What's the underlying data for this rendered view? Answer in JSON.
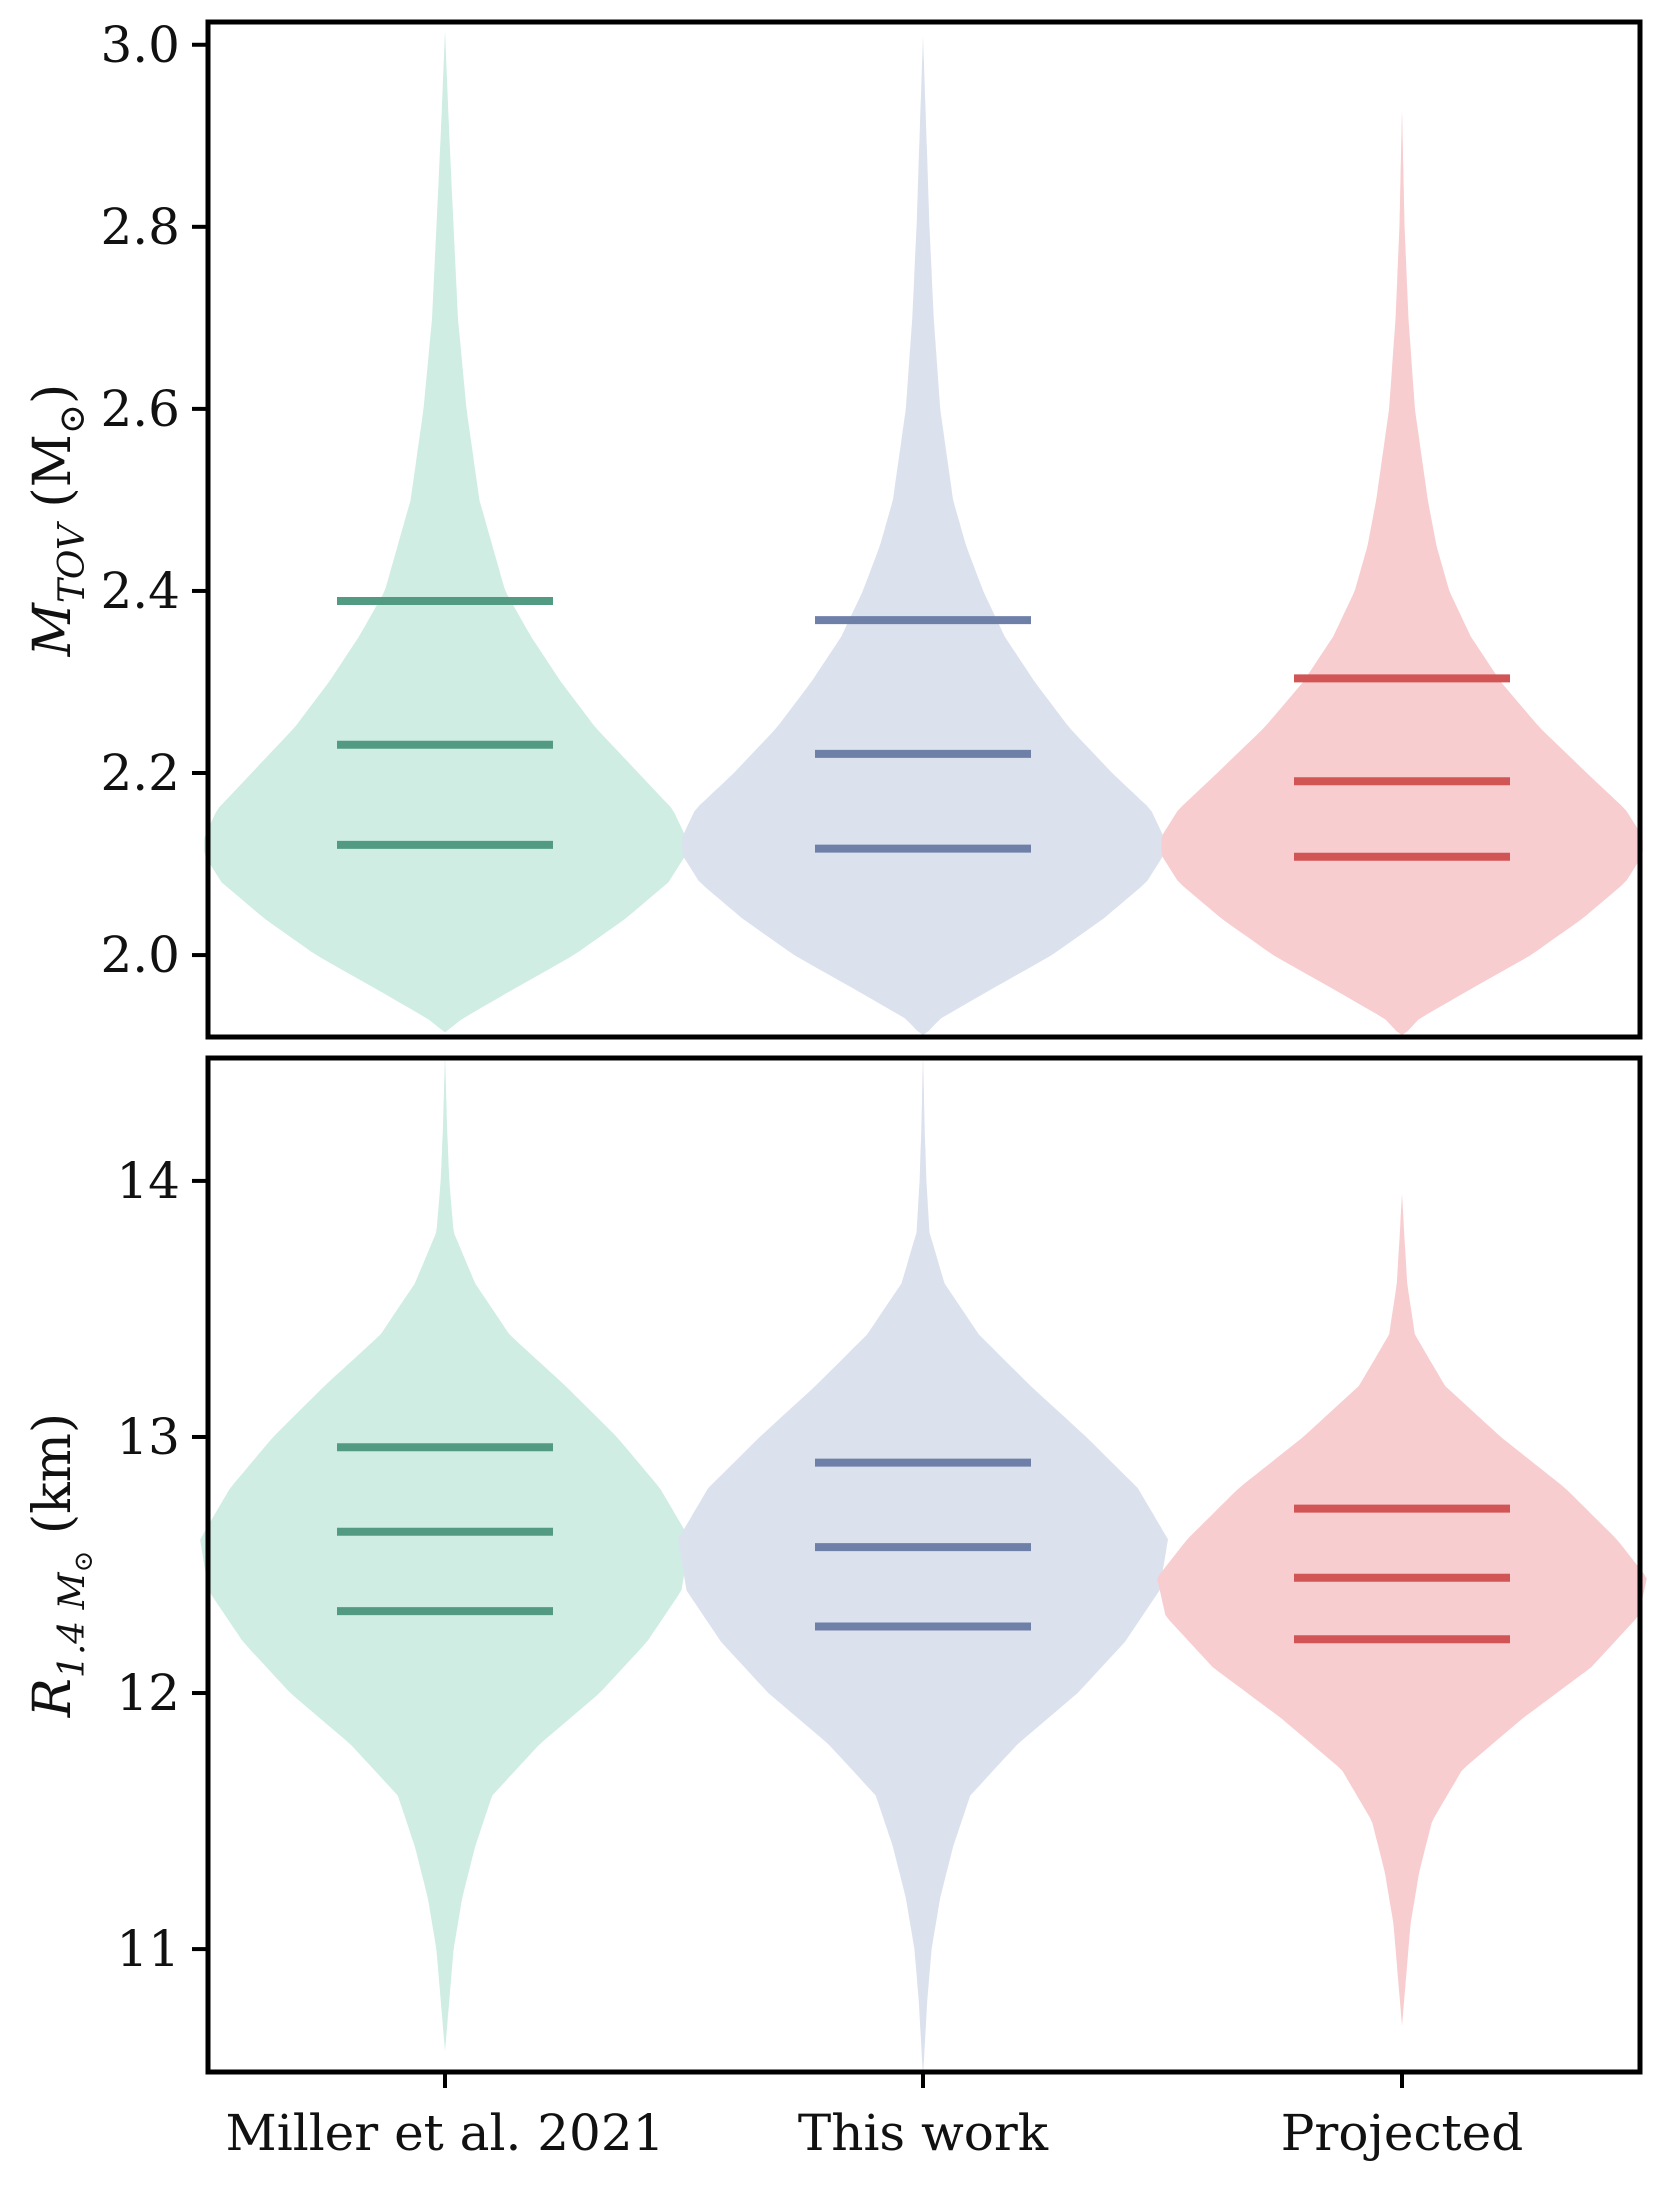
{
  "chart_data": [
    {
      "type": "violin",
      "panel": "top",
      "ylabel": "M_{TOV} (M_⊙)",
      "ylabel_parts": {
        "main": "M",
        "sub": "TOV",
        "rest": " (M",
        "rest_sub": "⊙",
        "close": ")"
      },
      "ylim": [
        1.91,
        3.025
      ],
      "yticks": [
        2.0,
        2.2,
        2.4,
        2.6,
        2.8,
        3.0
      ],
      "ytick_labels": [
        "2.0",
        "2.2",
        "2.4",
        "2.6",
        "2.8",
        "3.0"
      ],
      "xticks_visible": false,
      "series": [
        {
          "name": "Miller et al. 2021",
          "color": "#cfede2",
          "quantile_color": "#529b82",
          "quantiles": [
            2.121,
            2.231,
            2.389
          ],
          "range": [
            1.915,
            3.015
          ],
          "density": [
            [
              1.915,
              0.0
            ],
            [
              1.93,
              0.04
            ],
            [
              1.96,
              0.15
            ],
            [
              2.0,
              0.3
            ],
            [
              2.04,
              0.42
            ],
            [
              2.08,
              0.52
            ],
            [
              2.11,
              0.56
            ],
            [
              2.13,
              0.56
            ],
            [
              2.16,
              0.53
            ],
            [
              2.2,
              0.45
            ],
            [
              2.25,
              0.35
            ],
            [
              2.3,
              0.27
            ],
            [
              2.35,
              0.2
            ],
            [
              2.4,
              0.14
            ],
            [
              2.45,
              0.11
            ],
            [
              2.5,
              0.08
            ],
            [
              2.6,
              0.05
            ],
            [
              2.7,
              0.03
            ],
            [
              2.8,
              0.02
            ],
            [
              2.9,
              0.01
            ],
            [
              3.015,
              0.0
            ]
          ]
        },
        {
          "name": "This work",
          "color": "#dce1ee",
          "quantile_color": "#6f80a8",
          "quantiles": [
            2.117,
            2.221,
            2.368
          ],
          "range": [
            1.91,
            3.01
          ],
          "density": [
            [
              1.91,
              0.0
            ],
            [
              1.93,
              0.04
            ],
            [
              1.96,
              0.15
            ],
            [
              2.0,
              0.3
            ],
            [
              2.04,
              0.42
            ],
            [
              2.08,
              0.52
            ],
            [
              2.11,
              0.56
            ],
            [
              2.13,
              0.56
            ],
            [
              2.16,
              0.53
            ],
            [
              2.2,
              0.44
            ],
            [
              2.25,
              0.34
            ],
            [
              2.3,
              0.26
            ],
            [
              2.35,
              0.19
            ],
            [
              2.4,
              0.14
            ],
            [
              2.45,
              0.1
            ],
            [
              2.5,
              0.07
            ],
            [
              2.6,
              0.04
            ],
            [
              2.7,
              0.025
            ],
            [
              2.8,
              0.015
            ],
            [
              2.9,
              0.008
            ],
            [
              3.01,
              0.0
            ]
          ]
        },
        {
          "name": "Projected",
          "color": "#f8cdcf",
          "quantile_color": "#d25556",
          "quantiles": [
            2.108,
            2.191,
            2.304
          ],
          "range": [
            1.91,
            2.93
          ],
          "density": [
            [
              1.91,
              0.0
            ],
            [
              1.93,
              0.04
            ],
            [
              1.96,
              0.15
            ],
            [
              2.0,
              0.3
            ],
            [
              2.04,
              0.42
            ],
            [
              2.08,
              0.52
            ],
            [
              2.11,
              0.56
            ],
            [
              2.13,
              0.56
            ],
            [
              2.16,
              0.52
            ],
            [
              2.2,
              0.43
            ],
            [
              2.25,
              0.32
            ],
            [
              2.3,
              0.23
            ],
            [
              2.35,
              0.16
            ],
            [
              2.4,
              0.11
            ],
            [
              2.45,
              0.08
            ],
            [
              2.5,
              0.06
            ],
            [
              2.6,
              0.03
            ],
            [
              2.7,
              0.015
            ],
            [
              2.8,
              0.006
            ],
            [
              2.93,
              0.0
            ]
          ]
        }
      ]
    },
    {
      "type": "violin",
      "panel": "bottom",
      "ylabel": "R_{1.4 M_⊙} (km)",
      "ylabel_parts": {
        "main": "R",
        "sub": "1.4 M",
        "subsub": "⊙",
        "rest": " (km)"
      },
      "ylim": [
        10.52,
        14.48
      ],
      "yticks": [
        11,
        12,
        13,
        14
      ],
      "ytick_labels": [
        "11",
        "12",
        "13",
        "14"
      ],
      "xticks_visible": true,
      "categories": [
        "Miller et al. 2021",
        "This work",
        "Projected"
      ],
      "series": [
        {
          "name": "Miller et al. 2021",
          "color": "#cfede2",
          "quantile_color": "#529b82",
          "quantiles": [
            12.32,
            12.63,
            12.96
          ],
          "range": [
            10.6,
            14.5
          ],
          "density": [
            [
              10.6,
              0.0
            ],
            [
              10.8,
              0.01
            ],
            [
              11.0,
              0.02
            ],
            [
              11.2,
              0.04
            ],
            [
              11.4,
              0.07
            ],
            [
              11.6,
              0.11
            ],
            [
              11.8,
              0.22
            ],
            [
              12.0,
              0.36
            ],
            [
              12.2,
              0.47
            ],
            [
              12.4,
              0.55
            ],
            [
              12.6,
              0.57
            ],
            [
              12.8,
              0.5
            ],
            [
              13.0,
              0.4
            ],
            [
              13.2,
              0.28
            ],
            [
              13.4,
              0.15
            ],
            [
              13.6,
              0.07
            ],
            [
              13.8,
              0.02
            ],
            [
              14.0,
              0.01
            ],
            [
              14.2,
              0.005
            ],
            [
              14.5,
              0.0
            ]
          ]
        },
        {
          "name": "This work",
          "color": "#dce1ee",
          "quantile_color": "#6f80a8",
          "quantiles": [
            12.26,
            12.57,
            12.9
          ],
          "range": [
            10.5,
            14.5
          ],
          "density": [
            [
              10.5,
              0.0
            ],
            [
              10.8,
              0.01
            ],
            [
              11.0,
              0.02
            ],
            [
              11.2,
              0.04
            ],
            [
              11.4,
              0.07
            ],
            [
              11.6,
              0.11
            ],
            [
              11.8,
              0.22
            ],
            [
              12.0,
              0.36
            ],
            [
              12.2,
              0.47
            ],
            [
              12.4,
              0.55
            ],
            [
              12.6,
              0.57
            ],
            [
              12.8,
              0.5
            ],
            [
              13.0,
              0.38
            ],
            [
              13.2,
              0.25
            ],
            [
              13.4,
              0.13
            ],
            [
              13.6,
              0.05
            ],
            [
              13.8,
              0.015
            ],
            [
              14.0,
              0.008
            ],
            [
              14.2,
              0.004
            ],
            [
              14.5,
              0.0
            ]
          ]
        },
        {
          "name": "Projected",
          "color": "#f8cdcf",
          "quantile_color": "#d25556",
          "quantiles": [
            12.21,
            12.45,
            12.72
          ],
          "range": [
            10.7,
            13.95
          ],
          "density": [
            [
              10.7,
              0.0
            ],
            [
              10.9,
              0.01
            ],
            [
              11.1,
              0.02
            ],
            [
              11.3,
              0.04
            ],
            [
              11.5,
              0.07
            ],
            [
              11.7,
              0.14
            ],
            [
              11.9,
              0.28
            ],
            [
              12.1,
              0.44
            ],
            [
              12.3,
              0.55
            ],
            [
              12.45,
              0.57
            ],
            [
              12.6,
              0.5
            ],
            [
              12.8,
              0.38
            ],
            [
              13.0,
              0.23
            ],
            [
              13.2,
              0.1
            ],
            [
              13.4,
              0.03
            ],
            [
              13.6,
              0.012
            ],
            [
              13.8,
              0.005
            ],
            [
              13.95,
              0.0
            ]
          ]
        }
      ]
    }
  ]
}
